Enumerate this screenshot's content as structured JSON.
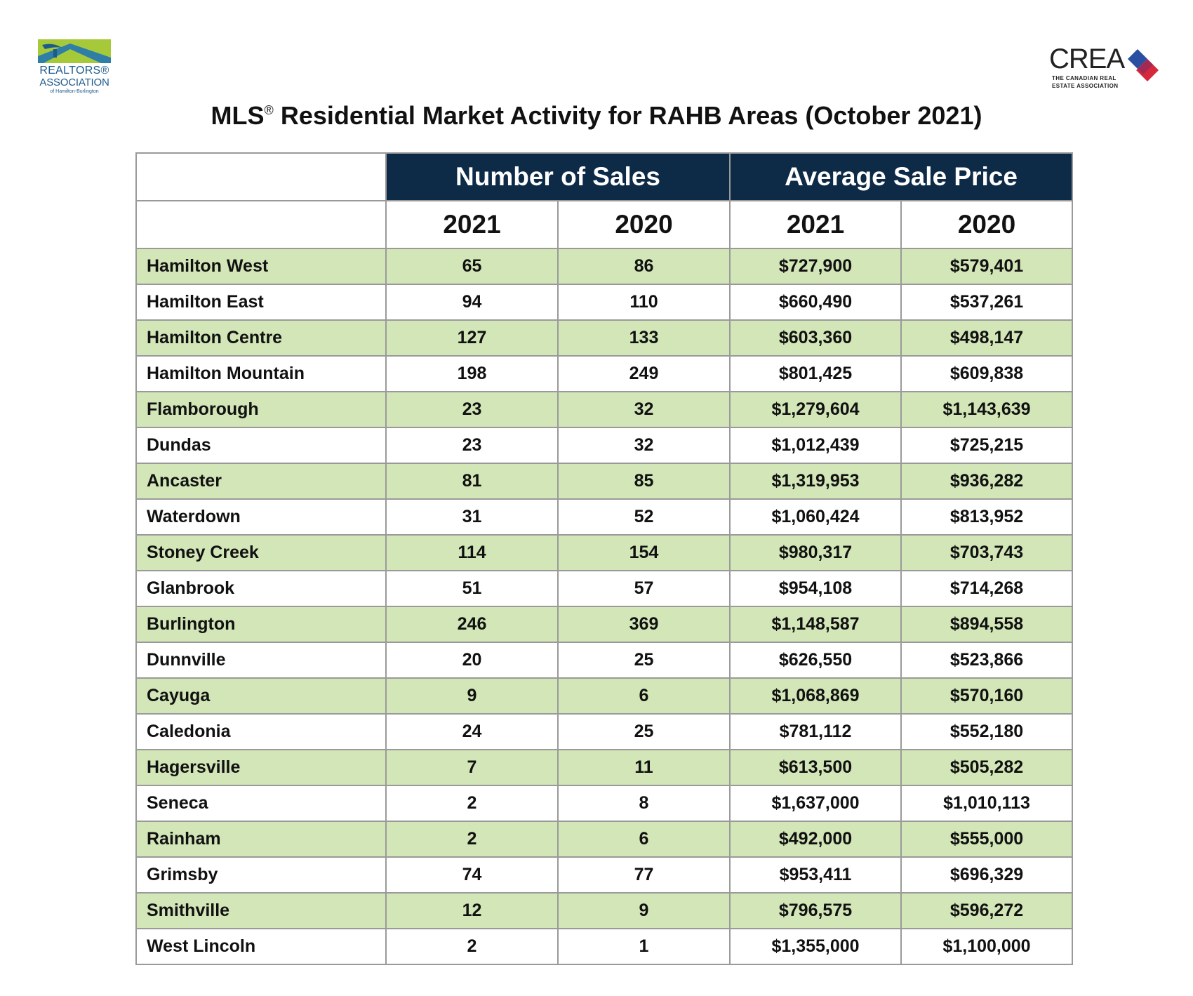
{
  "logos": {
    "left": {
      "line1": "REALTORS®",
      "line2": "ASSOCIATION",
      "line3": "of Hamilton-Burlington",
      "colors": {
        "navy": "#1d5a8c",
        "lime": "#a6c93a",
        "teal": "#2e7ea8"
      }
    },
    "right": {
      "word": "CREA",
      "sub_line1": "THE CANADIAN REAL",
      "sub_line2": "ESTATE ASSOCIATION",
      "colors": {
        "blue": "#2b4fa0",
        "red": "#d6283c"
      }
    }
  },
  "title": {
    "part1": "MLS",
    "reg": "®",
    "part2": " Residential Market Activity for RAHB Areas (October 2021)"
  },
  "table": {
    "groups": [
      "Number of Sales",
      "Average Sale Price"
    ],
    "years": [
      "2021",
      "2020",
      "2021",
      "2020"
    ],
    "rows": [
      [
        "Hamilton West",
        "65",
        "86",
        "$727,900",
        "$579,401"
      ],
      [
        "Hamilton East",
        "94",
        "110",
        "$660,490",
        "$537,261"
      ],
      [
        "Hamilton Centre",
        "127",
        "133",
        "$603,360",
        "$498,147"
      ],
      [
        "Hamilton Mountain",
        "198",
        "249",
        "$801,425",
        "$609,838"
      ],
      [
        "Flamborough",
        "23",
        "32",
        "$1,279,604",
        "$1,143,639"
      ],
      [
        "Dundas",
        "23",
        "32",
        "$1,012,439",
        "$725,215"
      ],
      [
        "Ancaster",
        "81",
        "85",
        "$1,319,953",
        "$936,282"
      ],
      [
        "Waterdown",
        "31",
        "52",
        "$1,060,424",
        "$813,952"
      ],
      [
        "Stoney Creek",
        "114",
        "154",
        "$980,317",
        "$703,743"
      ],
      [
        "Glanbrook",
        "51",
        "57",
        "$954,108",
        "$714,268"
      ],
      [
        "Burlington",
        "246",
        "369",
        "$1,148,587",
        "$894,558"
      ],
      [
        "Dunnville",
        "20",
        "25",
        "$626,550",
        "$523,866"
      ],
      [
        "Cayuga",
        "9",
        "6",
        "$1,068,869",
        "$570,160"
      ],
      [
        "Caledonia",
        "24",
        "25",
        "$781,112",
        "$552,180"
      ],
      [
        "Hagersville",
        "7",
        "11",
        "$613,500",
        "$505,282"
      ],
      [
        "Seneca",
        "2",
        "8",
        "$1,637,000",
        "$1,010,113"
      ],
      [
        "Rainham",
        "2",
        "6",
        "$492,000",
        "$555,000"
      ],
      [
        "Grimsby",
        "74",
        "77",
        "$953,411",
        "$696,329"
      ],
      [
        "Smithville",
        "12",
        "9",
        "$796,575",
        "$596,272"
      ],
      [
        "West Lincoln",
        "2",
        "1",
        "$1,355,000",
        "$1,100,000"
      ]
    ]
  },
  "colors": {
    "header_navy": "#0d2a47",
    "row_shade_green": "#d3e6b8",
    "border_gray": "#9a9a9a"
  }
}
